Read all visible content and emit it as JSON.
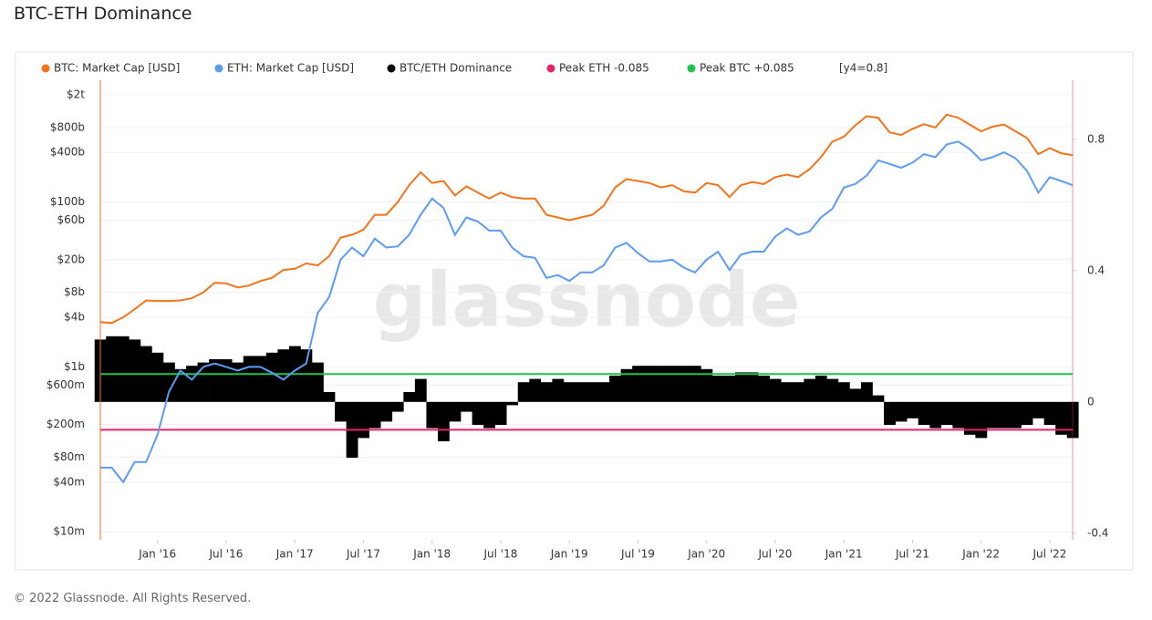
{
  "title": "BTC-ETH Dominance",
  "footer": "© 2022 Glassnode. All Rights Reserved.",
  "chart_data": {
    "type": "line",
    "watermark": "glassnode",
    "legend_note": "[y4=0.8]",
    "ylog": true,
    "grid": true,
    "x": [
      "2015-08",
      "2015-09",
      "2015-10",
      "2015-11",
      "2015-12",
      "2016-01",
      "2016-02",
      "2016-03",
      "2016-04",
      "2016-05",
      "2016-06",
      "2016-07",
      "2016-08",
      "2016-09",
      "2016-10",
      "2016-11",
      "2016-12",
      "2017-01",
      "2017-02",
      "2017-03",
      "2017-04",
      "2017-05",
      "2017-06",
      "2017-07",
      "2017-08",
      "2017-09",
      "2017-10",
      "2017-11",
      "2017-12",
      "2018-01",
      "2018-02",
      "2018-03",
      "2018-04",
      "2018-05",
      "2018-06",
      "2018-07",
      "2018-08",
      "2018-09",
      "2018-10",
      "2018-11",
      "2018-12",
      "2019-01",
      "2019-02",
      "2019-03",
      "2019-04",
      "2019-05",
      "2019-06",
      "2019-07",
      "2019-08",
      "2019-09",
      "2019-10",
      "2019-11",
      "2019-12",
      "2020-01",
      "2020-02",
      "2020-03",
      "2020-04",
      "2020-05",
      "2020-06",
      "2020-07",
      "2020-08",
      "2020-09",
      "2020-10",
      "2020-11",
      "2020-12",
      "2021-01",
      "2021-02",
      "2021-03",
      "2021-04",
      "2021-05",
      "2021-06",
      "2021-07",
      "2021-08",
      "2021-09",
      "2021-10",
      "2021-11",
      "2021-12",
      "2022-01",
      "2022-02",
      "2022-03",
      "2022-04",
      "2022-05",
      "2022-06",
      "2022-07",
      "2022-08",
      "2022-09"
    ],
    "xlim": [
      "2015-08",
      "2022-09"
    ],
    "xticks": [
      {
        "value": "2016-01",
        "label": "Jan '16"
      },
      {
        "value": "2016-07",
        "label": "Jul '16"
      },
      {
        "value": "2017-01",
        "label": "Jan '17"
      },
      {
        "value": "2017-07",
        "label": "Jul '17"
      },
      {
        "value": "2018-01",
        "label": "Jan '18"
      },
      {
        "value": "2018-07",
        "label": "Jul '18"
      },
      {
        "value": "2019-01",
        "label": "Jan '19"
      },
      {
        "value": "2019-07",
        "label": "Jul '19"
      },
      {
        "value": "2020-01",
        "label": "Jan '20"
      },
      {
        "value": "2020-07",
        "label": "Jul '20"
      },
      {
        "value": "2021-01",
        "label": "Jan '21"
      },
      {
        "value": "2021-07",
        "label": "Jul '21"
      },
      {
        "value": "2022-01",
        "label": "Jan '22"
      },
      {
        "value": "2022-07",
        "label": "Jul '22"
      }
    ],
    "ylim": [
      8000000.0,
      3000000000000.0
    ],
    "yticks": [
      {
        "value": 2000000000000.0,
        "label": "$2t"
      },
      {
        "value": 800000000000.0,
        "label": "$800b"
      },
      {
        "value": 400000000000.0,
        "label": "$400b"
      },
      {
        "value": 100000000000.0,
        "label": "$100b"
      },
      {
        "value": 60000000000.0,
        "label": "$60b"
      },
      {
        "value": 20000000000.0,
        "label": "$20b"
      },
      {
        "value": 8000000000.0,
        "label": "$8b"
      },
      {
        "value": 4000000000.0,
        "label": "$4b"
      },
      {
        "value": 1000000000.0,
        "label": "$1b"
      },
      {
        "value": 600000000.0,
        "label": "$600m"
      },
      {
        "value": 200000000.0,
        "label": "$200m"
      },
      {
        "value": 80000000.0,
        "label": "$80m"
      },
      {
        "value": 40000000.0,
        "label": "$40m"
      },
      {
        "value": 10000000.0,
        "label": "$10m"
      }
    ],
    "y2lim": [
      -0.42,
      0.98
    ],
    "y2ticks": [
      -0.4,
      0,
      0.4,
      0.8
    ],
    "series": [
      {
        "name": "BTC: Market Cap [USD]",
        "color": "#f2741b",
        "mark": "line",
        "axis": "y",
        "values": [
          3500000000.0,
          3400000000.0,
          4000000000.0,
          5000000000.0,
          6400000000.0,
          6300000000.0,
          6300000000.0,
          6400000000.0,
          6800000000.0,
          8000000000.0,
          10500000000.0,
          10300000000.0,
          9200000000.0,
          9700000000.0,
          11000000000.0,
          12000000000.0,
          15000000000.0,
          15500000000.0,
          18000000000.0,
          17000000000.0,
          22000000000.0,
          37000000000.0,
          40000000000.0,
          46000000000.0,
          70000000000.0,
          70000000000.0,
          100000000000.0,
          160000000000.0,
          230000000000.0,
          170000000000.0,
          180000000000.0,
          120000000000.0,
          155000000000.0,
          130000000000.0,
          110000000000.0,
          130000000000.0,
          115000000000.0,
          110000000000.0,
          110000000000.0,
          70000000000.0,
          65000000000.0,
          60000000000.0,
          65000000000.0,
          70000000000.0,
          90000000000.0,
          150000000000.0,
          190000000000.0,
          180000000000.0,
          170000000000.0,
          150000000000.0,
          160000000000.0,
          135000000000.0,
          130000000000.0,
          170000000000.0,
          160000000000.0,
          115000000000.0,
          160000000000.0,
          175000000000.0,
          165000000000.0,
          200000000000.0,
          215000000000.0,
          200000000000.0,
          250000000000.0,
          350000000000.0,
          540000000000.0,
          620000000000.0,
          850000000000.0,
          1100000000000.0,
          1050000000000.0,
          700000000000.0,
          650000000000.0,
          770000000000.0,
          880000000000.0,
          800000000000.0,
          1150000000000.0,
          1050000000000.0,
          870000000000.0,
          720000000000.0,
          820000000000.0,
          870000000000.0,
          720000000000.0,
          600000000000.0,
          380000000000.0,
          450000000000.0,
          390000000000.0,
          370000000000.0
        ]
      },
      {
        "name": "ETH: Market Cap [USD]",
        "color": "#5b9cf2",
        "mark": "line",
        "axis": "y",
        "values": [
          60000000.0,
          60000000.0,
          40000000.0,
          70000000.0,
          70000000.0,
          150000000.0,
          500000000.0,
          900000000.0,
          700000000.0,
          1000000000.0,
          1100000000.0,
          1000000000.0,
          900000000.0,
          1000000000.0,
          1000000000.0,
          850000000.0,
          700000000.0,
          900000000.0,
          1100000000.0,
          4500000000.0,
          7000000000.0,
          20000000000.0,
          28000000000.0,
          22000000000.0,
          36000000000.0,
          28000000000.0,
          29000000000.0,
          40000000000.0,
          70000000000.0,
          110000000000.0,
          85000000000.0,
          40000000000.0,
          65000000000.0,
          58000000000.0,
          45000000000.0,
          45000000000.0,
          28000000000.0,
          22000000000.0,
          21000000000.0,
          12000000000.0,
          13000000000.0,
          11000000000.0,
          14000000000.0,
          14000000000.0,
          17000000000.0,
          28000000000.0,
          32000000000.0,
          24000000000.0,
          19000000000.0,
          19000000000.0,
          20000000000.0,
          16000000000.0,
          14000000000.0,
          20000000000.0,
          25000000000.0,
          15000000000.0,
          23000000000.0,
          25000000000.0,
          25000000000.0,
          38000000000.0,
          48000000000.0,
          40000000000.0,
          44000000000.0,
          65000000000.0,
          83000000000.0,
          150000000000.0,
          165000000000.0,
          210000000000.0,
          320000000000.0,
          290000000000.0,
          260000000000.0,
          300000000000.0,
          380000000000.0,
          350000000000.0,
          500000000000.0,
          540000000000.0,
          440000000000.0,
          320000000000.0,
          350000000000.0,
          400000000000.0,
          340000000000.0,
          240000000000.0,
          130000000000.0,
          200000000000.0,
          180000000000.0,
          160000000000.0
        ]
      },
      {
        "name": "BTC/ETH Dominance",
        "color": "#000000",
        "mark": "bar",
        "axis": "y2",
        "values": [
          0.19,
          0.2,
          0.2,
          0.19,
          0.17,
          0.15,
          0.12,
          0.1,
          0.11,
          0.12,
          0.13,
          0.13,
          0.12,
          0.14,
          0.14,
          0.15,
          0.16,
          0.17,
          0.16,
          0.12,
          0.03,
          -0.06,
          -0.17,
          -0.11,
          -0.08,
          -0.06,
          -0.03,
          0.03,
          0.07,
          -0.08,
          -0.12,
          -0.06,
          -0.03,
          -0.07,
          -0.08,
          -0.07,
          -0.01,
          0.06,
          0.07,
          0.06,
          0.07,
          0.06,
          0.06,
          0.06,
          0.06,
          0.08,
          0.1,
          0.11,
          0.11,
          0.11,
          0.11,
          0.11,
          0.11,
          0.1,
          0.08,
          0.08,
          0.09,
          0.09,
          0.08,
          0.07,
          0.06,
          0.06,
          0.07,
          0.08,
          0.07,
          0.06,
          0.04,
          0.06,
          0.02,
          -0.07,
          -0.06,
          -0.05,
          -0.07,
          -0.08,
          -0.07,
          -0.08,
          -0.1,
          -0.11,
          -0.08,
          -0.08,
          -0.08,
          -0.07,
          -0.05,
          -0.07,
          -0.1,
          -0.11
        ]
      }
    ],
    "reference_lines": [
      {
        "name": "Peak ETH -0.085",
        "value": -0.085,
        "color": "#e6226f",
        "axis": "y2"
      },
      {
        "name": "Peak BTC +0.085",
        "value": 0.085,
        "color": "#1bc44b",
        "axis": "y2"
      }
    ]
  }
}
